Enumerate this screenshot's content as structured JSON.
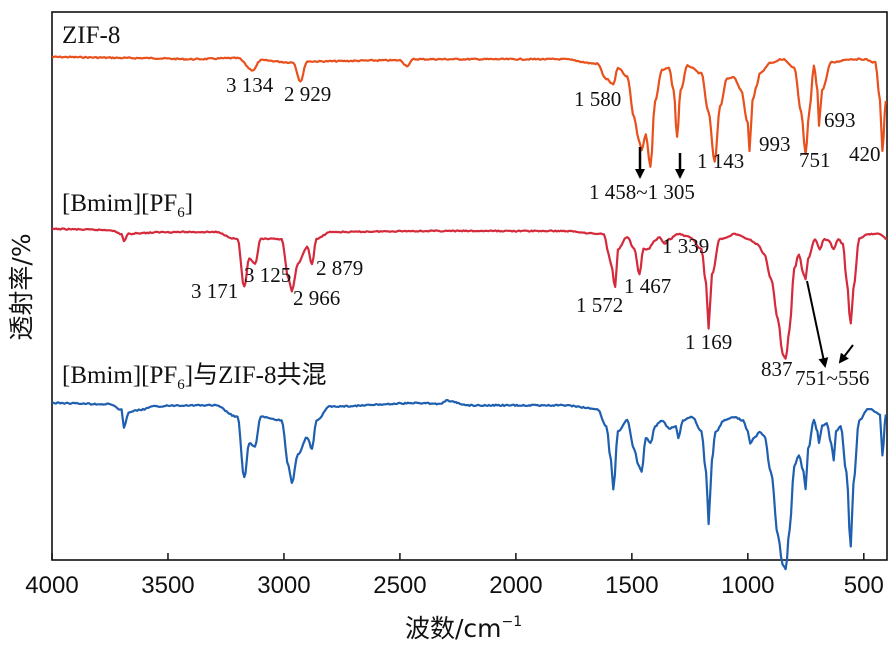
{
  "chart_data": {
    "type": "line",
    "xlabel": "波数/cm",
    "xlabel_sup": "−1",
    "ylabel": "透射率/%",
    "xlim": [
      4000,
      400
    ],
    "x_reversed": true,
    "xticks": [
      "4000",
      "3500",
      "3000",
      "2500",
      "2000",
      "1500",
      "1000",
      "500"
    ],
    "xtick_values": [
      4000,
      3500,
      3000,
      2500,
      2000,
      1500,
      1000,
      500
    ],
    "series": [
      {
        "name": "ZIF-8",
        "name_main": "ZIF-8",
        "color": "#e8501c",
        "baseline": 0.0,
        "points": [
          [
            4000,
            0
          ],
          [
            3600,
            0.01
          ],
          [
            3400,
            0.02
          ],
          [
            3200,
            0.01
          ],
          [
            3134,
            0.12
          ],
          [
            3100,
            0.03
          ],
          [
            2960,
            0.05
          ],
          [
            2929,
            0.22
          ],
          [
            2900,
            0.04
          ],
          [
            2500,
            0.03
          ],
          [
            2470,
            0.08
          ],
          [
            2440,
            0.02
          ],
          [
            1800,
            0.02
          ],
          [
            1650,
            0.06
          ],
          [
            1610,
            0.2
          ],
          [
            1580,
            0.25
          ],
          [
            1560,
            0.1
          ],
          [
            1520,
            0.18
          ],
          [
            1490,
            0.55
          ],
          [
            1470,
            0.75
          ],
          [
            1458,
            0.85
          ],
          [
            1440,
            0.7
          ],
          [
            1420,
            1.0
          ],
          [
            1400,
            0.4
          ],
          [
            1370,
            0.12
          ],
          [
            1340,
            0.1
          ],
          [
            1320,
            0.3
          ],
          [
            1305,
            0.72
          ],
          [
            1290,
            0.3
          ],
          [
            1260,
            0.08
          ],
          [
            1200,
            0.15
          ],
          [
            1170,
            0.5
          ],
          [
            1143,
            0.95
          ],
          [
            1120,
            0.45
          ],
          [
            1090,
            0.2
          ],
          [
            1060,
            0.18
          ],
          [
            1030,
            0.3
          ],
          [
            1000,
            0.6
          ],
          [
            993,
            0.85
          ],
          [
            980,
            0.4
          ],
          [
            960,
            0.25
          ],
          [
            950,
            0.15
          ],
          [
            900,
            0.05
          ],
          [
            850,
            0.02
          ],
          [
            800,
            0.1
          ],
          [
            770,
            0.5
          ],
          [
            751,
            0.88
          ],
          [
            735,
            0.5
          ],
          [
            715,
            0.08
          ],
          [
            700,
            0.3
          ],
          [
            693,
            0.62
          ],
          [
            680,
            0.3
          ],
          [
            640,
            0.05
          ],
          [
            560,
            0.02
          ],
          [
            500,
            0.02
          ],
          [
            450,
            0.05
          ],
          [
            430,
            0.4
          ],
          [
            420,
            0.85
          ],
          [
            405,
            0.4
          ]
        ]
      },
      {
        "name": "[Bmim][PF6]",
        "name_main": "[Bmim][PF",
        "name_sub": "6",
        "name_tail": "]",
        "color": "#d42a3c",
        "baseline": 0.0,
        "points": [
          [
            4000,
            0
          ],
          [
            3750,
            0.01
          ],
          [
            3700,
            0.05
          ],
          [
            3690,
            0.12
          ],
          [
            3670,
            0.05
          ],
          [
            3620,
            0.04
          ],
          [
            3500,
            0.03
          ],
          [
            3300,
            0.03
          ],
          [
            3200,
            0.1
          ],
          [
            3171,
            0.58
          ],
          [
            3150,
            0.3
          ],
          [
            3125,
            0.35
          ],
          [
            3100,
            0.1
          ],
          [
            3010,
            0.1
          ],
          [
            2980,
            0.5
          ],
          [
            2966,
            0.62
          ],
          [
            2940,
            0.35
          ],
          [
            2900,
            0.18
          ],
          [
            2879,
            0.35
          ],
          [
            2860,
            0.1
          ],
          [
            2800,
            0.03
          ],
          [
            2400,
            0.02
          ],
          [
            1800,
            0.02
          ],
          [
            1620,
            0.05
          ],
          [
            1600,
            0.25
          ],
          [
            1590,
            0.35
          ],
          [
            1572,
            0.58
          ],
          [
            1560,
            0.2
          ],
          [
            1520,
            0.08
          ],
          [
            1490,
            0.2
          ],
          [
            1467,
            0.45
          ],
          [
            1450,
            0.2
          ],
          [
            1430,
            0.2
          ],
          [
            1400,
            0.12
          ],
          [
            1380,
            0.08
          ],
          [
            1360,
            0.15
          ],
          [
            1339,
            0.1
          ],
          [
            1300,
            0.05
          ],
          [
            1250,
            0.08
          ],
          [
            1200,
            0.2
          ],
          [
            1180,
            0.55
          ],
          [
            1169,
            1.0
          ],
          [
            1155,
            0.45
          ],
          [
            1120,
            0.1
          ],
          [
            1050,
            0.05
          ],
          [
            1000,
            0.1
          ],
          [
            960,
            0.15
          ],
          [
            930,
            0.25
          ],
          [
            900,
            0.5
          ],
          [
            870,
            0.9
          ],
          [
            850,
            1.25
          ],
          [
            837,
            1.3
          ],
          [
            820,
            1.0
          ],
          [
            800,
            0.4
          ],
          [
            780,
            0.25
          ],
          [
            760,
            0.45
          ],
          [
            751,
            0.5
          ],
          [
            740,
            0.3
          ],
          [
            710,
            0.1
          ],
          [
            690,
            0.2
          ],
          [
            670,
            0.1
          ],
          [
            650,
            0.12
          ],
          [
            630,
            0.2
          ],
          [
            610,
            0.1
          ],
          [
            590,
            0.15
          ],
          [
            575,
            0.5
          ],
          [
            556,
            0.95
          ],
          [
            545,
            0.6
          ],
          [
            520,
            0.1
          ],
          [
            480,
            0.05
          ],
          [
            430,
            0.05
          ],
          [
            400,
            0.1
          ]
        ]
      },
      {
        "name": "[Bmim][PF6]与ZIF-8共混",
        "name_main": "[Bmim][PF",
        "name_sub": "6",
        "name_tail": "]与ZIF-8共混",
        "color": "#1f5fb0",
        "baseline": 0.0,
        "points": [
          [
            4000,
            0
          ],
          [
            3750,
            0.01
          ],
          [
            3700,
            0.06
          ],
          [
            3690,
            0.22
          ],
          [
            3670,
            0.08
          ],
          [
            3620,
            0.06
          ],
          [
            3560,
            0.03
          ],
          [
            3450,
            0.02
          ],
          [
            3300,
            0.02
          ],
          [
            3200,
            0.12
          ],
          [
            3171,
            0.65
          ],
          [
            3150,
            0.35
          ],
          [
            3125,
            0.38
          ],
          [
            3100,
            0.12
          ],
          [
            3010,
            0.15
          ],
          [
            2980,
            0.55
          ],
          [
            2966,
            0.7
          ],
          [
            2940,
            0.45
          ],
          [
            2900,
            0.3
          ],
          [
            2879,
            0.4
          ],
          [
            2860,
            0.15
          ],
          [
            2800,
            0.03
          ],
          [
            2400,
            0.0
          ],
          [
            2330,
            0.01
          ],
          [
            2300,
            -0.02
          ],
          [
            2200,
            0.02
          ],
          [
            1800,
            0.02
          ],
          [
            1650,
            0.05
          ],
          [
            1610,
            0.2
          ],
          [
            1590,
            0.5
          ],
          [
            1580,
            0.75
          ],
          [
            1560,
            0.25
          ],
          [
            1520,
            0.15
          ],
          [
            1490,
            0.4
          ],
          [
            1470,
            0.55
          ],
          [
            1458,
            0.6
          ],
          [
            1440,
            0.3
          ],
          [
            1420,
            0.35
          ],
          [
            1400,
            0.2
          ],
          [
            1370,
            0.15
          ],
          [
            1340,
            0.22
          ],
          [
            1310,
            0.2
          ],
          [
            1300,
            0.3
          ],
          [
            1280,
            0.15
          ],
          [
            1240,
            0.12
          ],
          [
            1200,
            0.25
          ],
          [
            1180,
            0.6
          ],
          [
            1169,
            1.05
          ],
          [
            1155,
            0.5
          ],
          [
            1140,
            0.25
          ],
          [
            1100,
            0.15
          ],
          [
            1060,
            0.12
          ],
          [
            1020,
            0.15
          ],
          [
            1000,
            0.25
          ],
          [
            990,
            0.35
          ],
          [
            970,
            0.3
          ],
          [
            950,
            0.25
          ],
          [
            930,
            0.28
          ],
          [
            900,
            0.6
          ],
          [
            870,
            1.15
          ],
          [
            850,
            1.4
          ],
          [
            837,
            1.45
          ],
          [
            820,
            1.1
          ],
          [
            800,
            0.55
          ],
          [
            780,
            0.45
          ],
          [
            760,
            0.6
          ],
          [
            751,
            0.75
          ],
          [
            740,
            0.4
          ],
          [
            715,
            0.15
          ],
          [
            700,
            0.25
          ],
          [
            693,
            0.35
          ],
          [
            680,
            0.2
          ],
          [
            660,
            0.18
          ],
          [
            640,
            0.35
          ],
          [
            630,
            0.5
          ],
          [
            620,
            0.25
          ],
          [
            600,
            0.2
          ],
          [
            575,
            0.6
          ],
          [
            556,
            1.25
          ],
          [
            545,
            0.7
          ],
          [
            520,
            0.15
          ],
          [
            480,
            0.05
          ],
          [
            430,
            0.1
          ],
          [
            420,
            0.45
          ],
          [
            405,
            0.1
          ]
        ]
      }
    ],
    "peak_labels": [
      {
        "series": 0,
        "text": "3 134"
      },
      {
        "series": 0,
        "text": "2 929"
      },
      {
        "series": 0,
        "text": "1 580"
      },
      {
        "series": 0,
        "text": "1 458~1 305"
      },
      {
        "series": 0,
        "text": "1 143"
      },
      {
        "series": 0,
        "text": "993"
      },
      {
        "series": 0,
        "text": "751"
      },
      {
        "series": 0,
        "text": "693"
      },
      {
        "series": 0,
        "text": "420"
      },
      {
        "series": 1,
        "text": "3 171"
      },
      {
        "series": 1,
        "text": "3 125"
      },
      {
        "series": 1,
        "text": "2 966"
      },
      {
        "series": 1,
        "text": "2 879"
      },
      {
        "series": 1,
        "text": "1 572"
      },
      {
        "series": 1,
        "text": "1 467"
      },
      {
        "series": 1,
        "text": "1 339"
      },
      {
        "series": 1,
        "text": "1 169"
      },
      {
        "series": 1,
        "text": "837"
      },
      {
        "series": 1,
        "text": "751~556"
      }
    ],
    "grid": false,
    "legend": "none"
  }
}
